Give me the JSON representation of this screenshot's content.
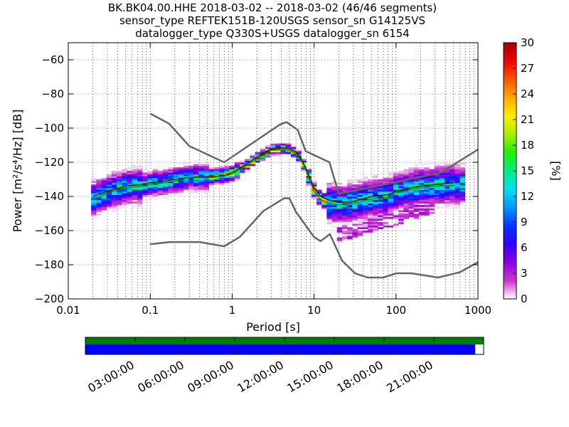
{
  "chart_data": {
    "type": "heatmap",
    "title_lines": [
      "BK.BK04.00.HHE   2018-03-02 -- 2018-03-02  (46/46 segments)",
      "sensor_type REFTEK151B-120USGS sensor_sn G14125VS",
      "datalogger_type Q330S+USGS datalogger_sn 6154"
    ],
    "xlabel": "Period [s]",
    "ylabel": "Power [m²/s⁴/Hz] [dB]",
    "x_scale": "log",
    "xlim": [
      0.01,
      1000
    ],
    "ylim": [
      -200,
      -50
    ],
    "x_ticks": [
      0.01,
      0.1,
      1,
      10,
      100,
      1000
    ],
    "x_tick_labels": [
      "0.01",
      "0.1",
      "1",
      "10",
      "100",
      "1000"
    ],
    "y_ticks": [
      -200,
      -180,
      -160,
      -140,
      -120,
      -100,
      -80,
      -60
    ],
    "y_tick_labels": [
      "−200",
      "−180",
      "−160",
      "−140",
      "−120",
      "−100",
      "−80",
      "−60"
    ],
    "grid": "dotted",
    "colorbar": {
      "label": "[%]",
      "range": [
        0,
        30
      ],
      "ticks": [
        0,
        3,
        6,
        9,
        12,
        15,
        18,
        21,
        24,
        27,
        30
      ],
      "tick_labels": [
        "0",
        "3",
        "6",
        "9",
        "12",
        "15",
        "18",
        "21",
        "24",
        "27",
        "30"
      ],
      "colors": [
        "#ffffff",
        "#cc33cc",
        "#8800dd",
        "#3300ff",
        "#0033ff",
        "#0099ff",
        "#00ddee",
        "#00ee88",
        "#22ee00",
        "#aaee00",
        "#ffee00",
        "#ffaa00",
        "#ff5500",
        "#ee0000",
        "#aa0000"
      ]
    },
    "noise_models": [
      {
        "label": "NHNM",
        "period": [
          0.1,
          0.17,
          0.3,
          0.8,
          3.8,
          4.6,
          6.3,
          7.9,
          15.4,
          20,
          354.8,
          1000
        ],
        "db": [
          -91.5,
          -97.4,
          -110.5,
          -120.0,
          -98.0,
          -96.5,
          -101.0,
          -113.5,
          -120.0,
          -138.5,
          -126.0,
          -112.5
        ]
      },
      {
        "label": "NLNM",
        "period": [
          0.1,
          0.17,
          0.4,
          0.8,
          1.24,
          2.4,
          4.3,
          5.0,
          6.0,
          10.0,
          12.0,
          15.6,
          21.9,
          31.6,
          45.0,
          70.0,
          101.0,
          154.0,
          328.0,
          600.0,
          1000
        ],
        "db": [
          -168.0,
          -166.7,
          -166.7,
          -169.2,
          -163.7,
          -148.6,
          -141.1,
          -141.1,
          -149.0,
          -163.8,
          -166.2,
          -162.1,
          -177.5,
          -185.0,
          -187.5,
          -187.5,
          -185.0,
          -185.0,
          -187.5,
          -184.4,
          -178.5
        ]
      }
    ],
    "mean_curve": {
      "period": [
        0.02,
        0.03,
        0.05,
        0.08,
        0.1,
        0.15,
        0.2,
        0.3,
        0.5,
        0.8,
        1.0,
        1.5,
        2,
        3,
        4,
        5,
        6,
        7,
        8,
        10,
        12,
        15,
        20,
        30,
        50,
        80,
        100,
        150,
        200,
        300,
        500
      ],
      "db": [
        -140,
        -137,
        -134,
        -133,
        -132,
        -131,
        -130,
        -129,
        -128.5,
        -128,
        -126,
        -121,
        -117,
        -112,
        -111.5,
        -112,
        -114,
        -118,
        -124,
        -135,
        -140,
        -142,
        -143.5,
        -143,
        -140,
        -139,
        -137,
        -135,
        -134,
        -133,
        -132
      ]
    },
    "mode_curve": {
      "period": [
        0.02,
        0.03,
        0.05,
        0.08,
        0.1,
        0.15,
        0.2,
        0.3,
        0.5,
        0.8,
        1.0,
        1.5,
        2,
        3,
        4,
        5,
        6,
        7,
        8,
        10,
        12,
        15,
        20,
        30,
        50,
        80,
        100,
        150,
        200,
        300,
        500
      ],
      "db": [
        -142,
        -138,
        -135,
        -134,
        -133,
        -132,
        -131,
        -129,
        -129,
        -128,
        -127,
        -122,
        -118,
        -113,
        -112.5,
        -113,
        -115,
        -119,
        -125,
        -137,
        -142,
        -144,
        -145,
        -144,
        -141.5,
        -140.5,
        -138,
        -136,
        -135,
        -134,
        -133.5
      ]
    }
  },
  "time_axis": {
    "labels": [
      "03:00:00",
      "06:00:00",
      "09:00:00",
      "12:00:00",
      "15:00:00",
      "18:00:00",
      "21:00:00"
    ],
    "hours": [
      3,
      6,
      9,
      12,
      15,
      18,
      21
    ],
    "span_hours": 24,
    "data_coverage_end_fraction": 0.979,
    "colors": {
      "coverage": "#0000ff",
      "segments": "#008000"
    }
  }
}
